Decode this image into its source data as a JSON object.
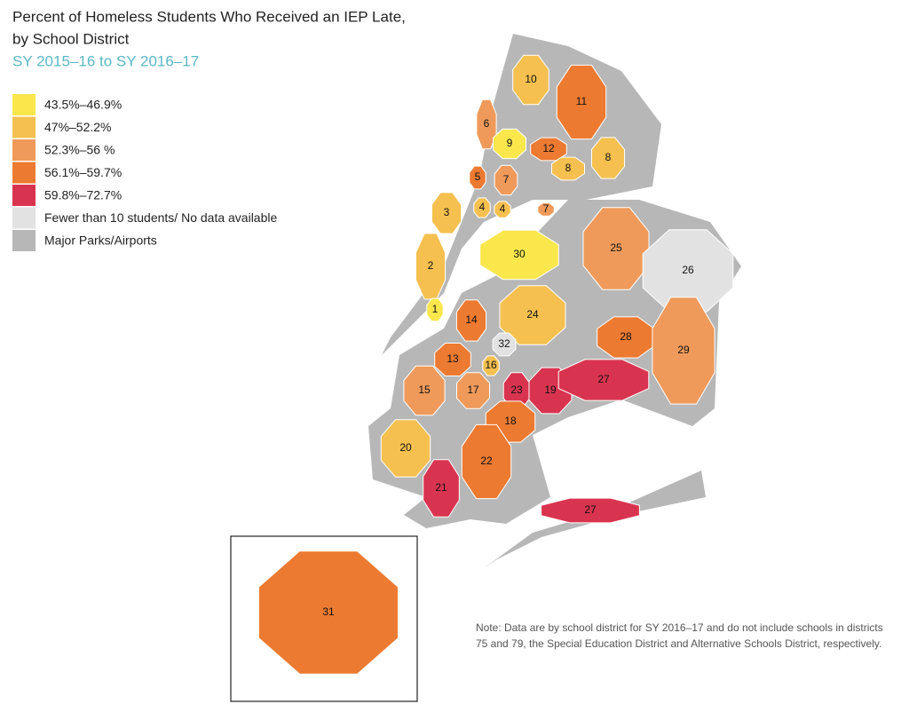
{
  "header": {
    "title_lines": [
      "Percent of Homeless Students Who Received an IEP Late,",
      "by School District"
    ],
    "subtitle": "SY 2015–16 to SY 2016–17"
  },
  "legend": [
    {
      "label": "43.5%–46.9%",
      "color": "#f9e74c"
    },
    {
      "label": "47%–52.2%",
      "color": "#f5c04f"
    },
    {
      "label": "52.3%–56 %",
      "color": "#ef9a5a"
    },
    {
      "label": "56.1%–59.7%",
      "color": "#ec7a31"
    },
    {
      "label": "59.8%–72.7%",
      "color": "#d9344f"
    },
    {
      "label": "Fewer than 10 students/ No data available",
      "color": "#e2e2e2"
    },
    {
      "label": "Major  Parks/Airports",
      "color": "#b7b7b7"
    }
  ],
  "districts": [
    {
      "label": "10",
      "color": "#f5c04f"
    },
    {
      "label": "11",
      "color": "#ec7a31"
    },
    {
      "label": "6",
      "color": "#ef9a5a"
    },
    {
      "label": "9",
      "color": "#f9e74c"
    },
    {
      "label": "12",
      "color": "#ec7a31"
    },
    {
      "label": "8",
      "color": "#f5c04f"
    },
    {
      "label": "8",
      "color": "#f5c04f"
    },
    {
      "label": "5",
      "color": "#ec7a31"
    },
    {
      "label": "7",
      "color": "#ef9a5a"
    },
    {
      "label": "3",
      "color": "#f5c04f"
    },
    {
      "label": "4",
      "color": "#f5c04f"
    },
    {
      "label": "4",
      "color": "#f5c04f"
    },
    {
      "label": "7",
      "color": "#ef9a5a"
    },
    {
      "label": "30",
      "color": "#f9e74c"
    },
    {
      "label": "25",
      "color": "#ef9a5a"
    },
    {
      "label": "26",
      "color": "#e2e2e2"
    },
    {
      "label": "2",
      "color": "#f5c04f"
    },
    {
      "label": "1",
      "color": "#f9e74c"
    },
    {
      "label": "24",
      "color": "#f5c04f"
    },
    {
      "label": "14",
      "color": "#ec7a31"
    },
    {
      "label": "32",
      "color": "#e2e2e2"
    },
    {
      "label": "28",
      "color": "#ec7a31"
    },
    {
      "label": "29",
      "color": "#ef9a5a"
    },
    {
      "label": "13",
      "color": "#ec7a31"
    },
    {
      "label": "16",
      "color": "#f5c04f"
    },
    {
      "label": "15",
      "color": "#ef9a5a"
    },
    {
      "label": "17",
      "color": "#ef9a5a"
    },
    {
      "label": "23",
      "color": "#d9344f"
    },
    {
      "label": "19",
      "color": "#d9344f"
    },
    {
      "label": "27",
      "color": "#d9344f"
    },
    {
      "label": "18",
      "color": "#ec7a31"
    },
    {
      "label": "20",
      "color": "#f5c04f"
    },
    {
      "label": "22",
      "color": "#ec7a31"
    },
    {
      "label": "21",
      "color": "#d9344f"
    },
    {
      "label": "27",
      "color": "#d9344f"
    },
    {
      "label": "31",
      "color": "#ec7a31"
    }
  ],
  "note": "Note: Data are by school district for SY 2016–17 and do not include schools in districts 75 and 79, the Special Education District and Alternative Schools District, respectively."
}
